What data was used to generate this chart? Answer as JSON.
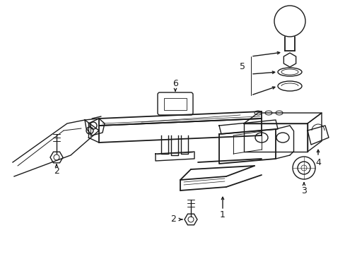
{
  "background_color": "#ffffff",
  "line_color": "#1a1a1a",
  "fig_width": 4.89,
  "fig_height": 3.6,
  "dpi": 100,
  "parts": [
    "1",
    "2",
    "3",
    "4",
    "5",
    "6"
  ]
}
